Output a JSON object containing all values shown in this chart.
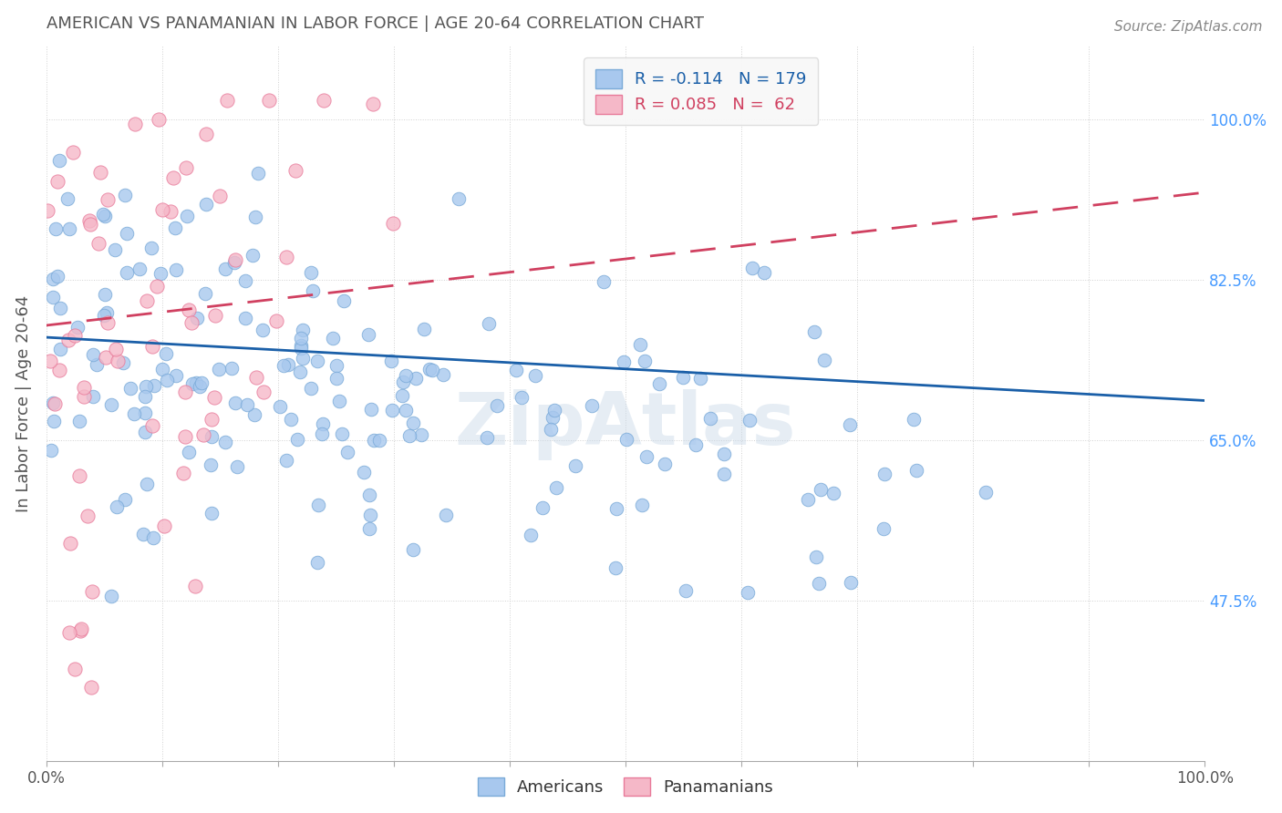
{
  "title": "AMERICAN VS PANAMANIAN IN LABOR FORCE | AGE 20-64 CORRELATION CHART",
  "source": "Source: ZipAtlas.com",
  "ylabel": "In Labor Force | Age 20-64",
  "y_tick_labels": [
    "47.5%",
    "65.0%",
    "82.5%",
    "100.0%"
  ],
  "american_R": -0.114,
  "american_N": 179,
  "panamanian_R": 0.085,
  "panamanian_N": 62,
  "american_color": "#a8c8ee",
  "american_edge": "#7aaad8",
  "panamanian_color": "#f5b8c8",
  "panamanian_edge": "#e87a9a",
  "american_line_color": "#1a5fa8",
  "panamanian_line_color": "#d04060",
  "background_color": "#ffffff",
  "grid_color": "#cccccc",
  "legend_bg": "#f8f8f8",
  "title_color": "#555555",
  "axis_label_color": "#555555",
  "tick_color_right": "#4499ff",
  "watermark": "ZipAtlas",
  "xlim": [
    0.0,
    1.0
  ],
  "ylim": [
    0.3,
    1.08
  ],
  "y_ticks": [
    0.475,
    0.65,
    0.825,
    1.0
  ],
  "figsize": [
    14.06,
    8.92
  ],
  "dpi": 100,
  "am_trend_y0": 0.762,
  "am_trend_y1": 0.693,
  "pan_trend_y0": 0.775,
  "pan_trend_y1": 0.92
}
